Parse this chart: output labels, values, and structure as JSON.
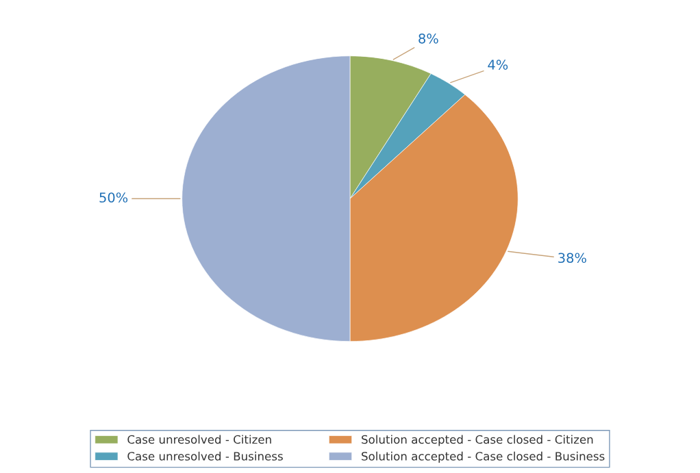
{
  "chart_data": {
    "type": "pie",
    "categories": [
      "Case unresolved - Citizen",
      "Case unresolved - Business",
      "Solution accepted - Case closed - Citizen",
      "Solution accepted - Case closed - Business"
    ],
    "values": [
      8,
      4,
      38,
      50
    ],
    "colors": [
      "#97ae5e",
      "#55a2bb",
      "#dd8f4f",
      "#9dafd1"
    ],
    "value_labels": [
      "8%",
      "4%",
      "38%",
      "50%"
    ],
    "legend": "bottom"
  }
}
